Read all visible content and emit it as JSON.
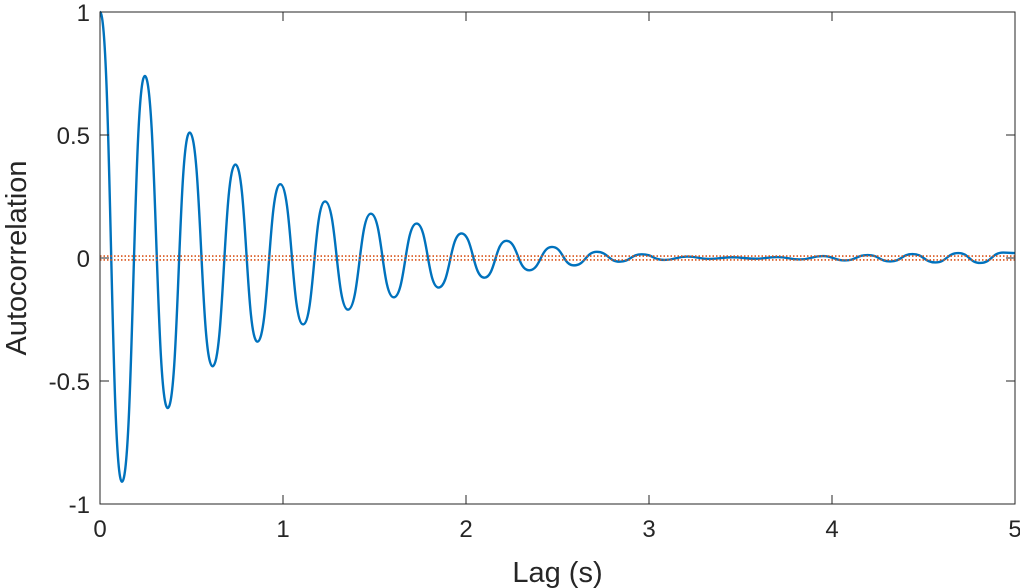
{
  "chart_data": {
    "type": "line",
    "title": "",
    "xlabel": "Lag (s)",
    "ylabel": "Autocorrelation",
    "xlim": [
      0,
      5
    ],
    "ylim": [
      -1,
      1
    ],
    "xticks": [
      0,
      1,
      2,
      3,
      4,
      5
    ],
    "xtick_labels": [
      "0",
      "1",
      "2",
      "3",
      "4",
      "5"
    ],
    "yticks": [
      -1,
      -0.5,
      0,
      0.5,
      1
    ],
    "ytick_labels": [
      "-1",
      "-0.5",
      "0",
      "0.5",
      "1"
    ],
    "grid": false,
    "box": true,
    "series": [
      {
        "color": "#0072BD",
        "style": "solid",
        "x": [
          0,
          0.12,
          0.245,
          0.37,
          0.49,
          0.615,
          0.74,
          0.86,
          0.985,
          1.11,
          1.23,
          1.355,
          1.48,
          1.605,
          1.73,
          1.85,
          1.975,
          2.1,
          2.22,
          2.345,
          2.47,
          2.59,
          2.715,
          2.84,
          2.96,
          3.085,
          3.21,
          3.33,
          3.455,
          3.58,
          3.7,
          3.825,
          3.95,
          4.07,
          4.195,
          4.32,
          4.44,
          4.565,
          4.69,
          4.81,
          4.935,
          5.0
        ],
        "y": [
          1,
          -0.91,
          0.74,
          -0.61,
          0.51,
          -0.44,
          0.38,
          -0.34,
          0.3,
          -0.27,
          0.23,
          -0.21,
          0.18,
          -0.16,
          0.14,
          -0.12,
          0.1,
          -0.08,
          0.07,
          -0.05,
          0.045,
          -0.03,
          0.025,
          -0.015,
          0.015,
          -0.008,
          0.006,
          -0.004,
          0.003,
          -0.003,
          0.004,
          -0.006,
          0.008,
          -0.01,
          0.012,
          -0.014,
          0.016,
          -0.018,
          0.02,
          -0.02,
          0.022,
          0.02
        ]
      },
      {
        "color": "#D95319",
        "style": "dotted",
        "x": [
          0,
          5
        ],
        "y": [
          0.008,
          0.008
        ]
      },
      {
        "color": "#D95319",
        "style": "dotted",
        "x": [
          0,
          5
        ],
        "y": [
          -0.008,
          -0.008
        ]
      }
    ]
  }
}
